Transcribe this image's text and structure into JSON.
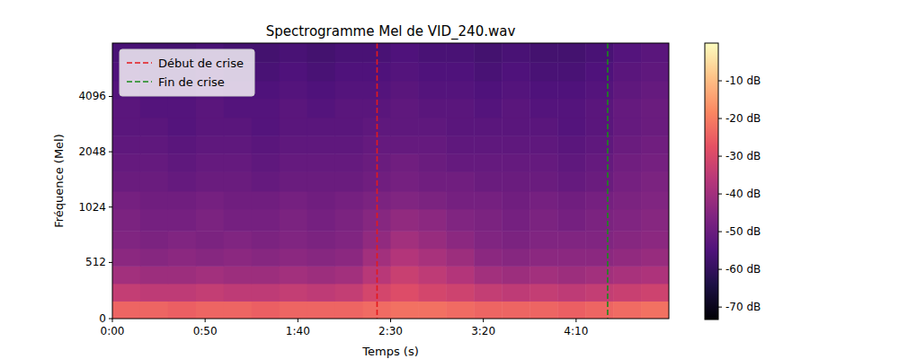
{
  "chart_data": {
    "type": "heatmap",
    "title": "Spectrogramme Mel de VID_240.wav",
    "x_label": "Temps (s)",
    "y_label": "Fréquence (Mel)",
    "log": "y",
    "legend": "upper left",
    "xlim": [
      0,
      300
    ],
    "xticks": [
      {
        "value": 0,
        "label": "0:00"
      },
      {
        "value": 50,
        "label": "0:50"
      },
      {
        "value": 100,
        "label": "1:40"
      },
      {
        "value": 150,
        "label": "2:30"
      },
      {
        "value": 200,
        "label": "3:20"
      },
      {
        "value": 250,
        "label": "4:10"
      }
    ],
    "ylim": [
      0,
      8000
    ],
    "yticks": [
      0,
      512,
      1024,
      2048,
      4096
    ],
    "x_bins": [
      0,
      15,
      30,
      45,
      60,
      75,
      90,
      105,
      120,
      135,
      150,
      165,
      180,
      195,
      210,
      225,
      240,
      255,
      270,
      285,
      300
    ],
    "y_bins": [
      0,
      160,
      320,
      480,
      640,
      800,
      1000,
      1250,
      1600,
      2000,
      2500,
      3150,
      4000,
      5000,
      6300,
      8000
    ],
    "values": [
      [
        -24,
        -24,
        -25,
        -24,
        -24,
        -25,
        -24,
        -24,
        -24,
        -23,
        -22,
        -22,
        -23,
        -24,
        -24,
        -24,
        -25,
        -24,
        -23,
        -22
      ],
      [
        -34,
        -35,
        -35,
        -34,
        -35,
        -35,
        -34,
        -35,
        -34,
        -31,
        -29,
        -31,
        -32,
        -34,
        -35,
        -34,
        -35,
        -34,
        -33,
        -32
      ],
      [
        -40,
        -41,
        -41,
        -40,
        -41,
        -41,
        -40,
        -41,
        -40,
        -36,
        -33,
        -35,
        -37,
        -40,
        -41,
        -40,
        -41,
        -40,
        -39,
        -38
      ],
      [
        -44,
        -45,
        -44,
        -45,
        -44,
        -45,
        -44,
        -45,
        -44,
        -40,
        -37,
        -39,
        -41,
        -44,
        -45,
        -44,
        -44,
        -44,
        -43,
        -42
      ],
      [
        -46,
        -47,
        -46,
        -47,
        -46,
        -47,
        -46,
        -47,
        -46,
        -43,
        -40,
        -42,
        -44,
        -46,
        -47,
        -46,
        -46,
        -46,
        -45,
        -44
      ],
      [
        -47,
        -48,
        -48,
        -47,
        -48,
        -48,
        -47,
        -48,
        -47,
        -45,
        -43,
        -44,
        -46,
        -47,
        -48,
        -47,
        -48,
        -47,
        -46,
        -45
      ],
      [
        -48,
        -49,
        -49,
        -48,
        -49,
        -49,
        -48,
        -49,
        -48,
        -47,
        -46,
        -47,
        -48,
        -48,
        -49,
        -48,
        -49,
        -48,
        -47,
        -46
      ],
      [
        -50,
        -50,
        -51,
        -50,
        -50,
        -51,
        -50,
        -50,
        -50,
        -49,
        -48,
        -49,
        -49,
        -50,
        -50,
        -50,
        -51,
        -50,
        -48,
        -47
      ],
      [
        -51,
        -51,
        -52,
        -51,
        -51,
        -52,
        -51,
        -51,
        -51,
        -50,
        -49,
        -50,
        -51,
        -51,
        -51,
        -51,
        -52,
        -51,
        -49,
        -48
      ],
      [
        -52,
        -52,
        -53,
        -52,
        -52,
        -53,
        -52,
        -52,
        -52,
        -51,
        -51,
        -51,
        -52,
        -52,
        -52,
        -52,
        -53,
        -52,
        -50,
        -49
      ],
      [
        -53,
        -53,
        -54,
        -53,
        -53,
        -54,
        -53,
        -53,
        -53,
        -52,
        -52,
        -52,
        -53,
        -53,
        -53,
        -53,
        -54,
        -53,
        -51,
        -50
      ],
      [
        -53,
        -54,
        -54,
        -53,
        -54,
        -54,
        -53,
        -54,
        -53,
        -53,
        -52,
        -53,
        -53,
        -54,
        -53,
        -54,
        -54,
        -53,
        -51,
        -50
      ],
      [
        -54,
        -55,
        -55,
        -54,
        -55,
        -55,
        -54,
        -55,
        -54,
        -54,
        -53,
        -54,
        -54,
        -55,
        -54,
        -55,
        -55,
        -54,
        -52,
        -51
      ],
      [
        -55,
        -56,
        -56,
        -55,
        -56,
        -56,
        -55,
        -56,
        -55,
        -55,
        -54,
        -55,
        -55,
        -56,
        -55,
        -56,
        -56,
        -55,
        -53,
        -52
      ],
      [
        -56,
        -57,
        -57,
        -56,
        -57,
        -57,
        -56,
        -57,
        -56,
        -56,
        -55,
        -56,
        -56,
        -57,
        -56,
        -57,
        -57,
        -56,
        -54,
        -53
      ]
    ],
    "colorbar_lim": [
      -73.3,
      0
    ],
    "colorbar_ticks": [
      {
        "value": -10,
        "label": "-10 dB"
      },
      {
        "value": -20,
        "label": "-20 dB"
      },
      {
        "value": -30,
        "label": "-30 dB"
      },
      {
        "value": -40,
        "label": "-40 dB"
      },
      {
        "value": -50,
        "label": "-50 dB"
      },
      {
        "value": -60,
        "label": "-60 dB"
      },
      {
        "value": -70,
        "label": "-70 dB"
      }
    ],
    "vlines": [
      {
        "x": 142.7,
        "label": "Début de crise",
        "color": "red",
        "line_style": "dashed"
      },
      {
        "x": 267,
        "label": "Fin de crise",
        "color": "green",
        "line_style": "dashed"
      }
    ]
  }
}
